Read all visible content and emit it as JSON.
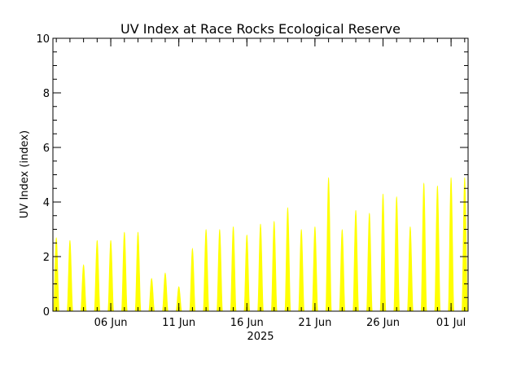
{
  "chart_data": {
    "type": "area",
    "title": "UV Index at Race Rocks Ecological Reserve",
    "ylabel": "UV Index (index)",
    "xlabel": "2025",
    "ylim": [
      0,
      10
    ],
    "xlim": [
      "2025-06-01T18:00",
      "2025-07-02T06:00"
    ],
    "y_ticks": [
      "0",
      "2",
      "4",
      "6",
      "8",
      "10"
    ],
    "x_ticks": [
      "06 Jun",
      "11 Jun",
      "16 Jun",
      "21 Jun",
      "26 Jun",
      "01 Jul"
    ],
    "x_tick_dates": [
      "2025-06-06",
      "2025-06-11",
      "2025-06-16",
      "2025-06-21",
      "2025-06-26",
      "2025-07-01"
    ],
    "grid": false,
    "fill_color": "#ffff00",
    "series": [
      {
        "daily_peaks": [
          {
            "date": "2025-06-02",
            "peak": 2.7
          },
          {
            "date": "2025-06-03",
            "peak": 2.6
          },
          {
            "date": "2025-06-04",
            "peak": 1.7
          },
          {
            "date": "2025-06-05",
            "peak": 2.6
          },
          {
            "date": "2025-06-06",
            "peak": 2.6
          },
          {
            "date": "2025-06-07",
            "peak": 2.9
          },
          {
            "date": "2025-06-08",
            "peak": 2.9
          },
          {
            "date": "2025-06-09",
            "peak": 1.2
          },
          {
            "date": "2025-06-10",
            "peak": 1.4
          },
          {
            "date": "2025-06-11",
            "peak": 0.9
          },
          {
            "date": "2025-06-12",
            "peak": 2.3
          },
          {
            "date": "2025-06-13",
            "peak": 3.0
          },
          {
            "date": "2025-06-14",
            "peak": 3.0
          },
          {
            "date": "2025-06-15",
            "peak": 3.1
          },
          {
            "date": "2025-06-16",
            "peak": 2.8
          },
          {
            "date": "2025-06-17",
            "peak": 3.2
          },
          {
            "date": "2025-06-18",
            "peak": 3.3
          },
          {
            "date": "2025-06-19",
            "peak": 3.8
          },
          {
            "date": "2025-06-20",
            "peak": 3.0
          },
          {
            "date": "2025-06-21",
            "peak": 3.1
          },
          {
            "date": "2025-06-22",
            "peak": 4.9
          },
          {
            "date": "2025-06-23",
            "peak": 3.0
          },
          {
            "date": "2025-06-24",
            "peak": 3.7
          },
          {
            "date": "2025-06-25",
            "peak": 3.6
          },
          {
            "date": "2025-06-26",
            "peak": 4.3
          },
          {
            "date": "2025-06-27",
            "peak": 4.2
          },
          {
            "date": "2025-06-28",
            "peak": 3.1
          },
          {
            "date": "2025-06-29",
            "peak": 4.7
          },
          {
            "date": "2025-06-30",
            "peak": 4.6
          },
          {
            "date": "2025-07-01",
            "peak": 4.9
          },
          {
            "date": "2025-07-02",
            "peak": 4.9
          }
        ]
      }
    ]
  }
}
